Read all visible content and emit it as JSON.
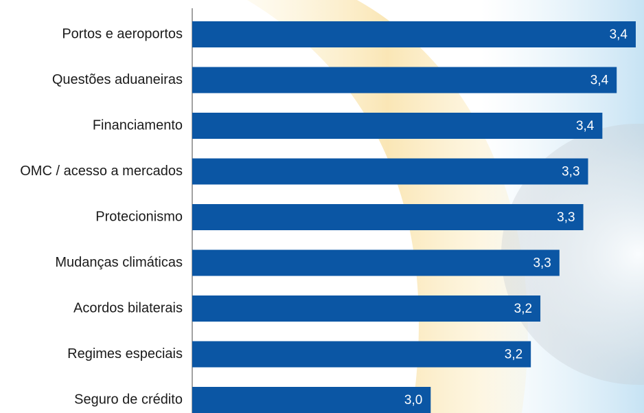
{
  "chart_data": {
    "type": "bar",
    "orientation": "horizontal",
    "categories": [
      "Portos e aeroportos",
      "Questões aduaneiras",
      "Financiamento",
      "OMC / acesso a mercados",
      "Protecionismo",
      "Mudanças climáticas",
      "Acordos bilaterais",
      "Regimes especiais",
      "Seguro de crédito"
    ],
    "values": [
      3.43,
      3.39,
      3.36,
      3.33,
      3.32,
      3.27,
      3.23,
      3.21,
      3.0
    ],
    "value_labels": [
      "3,4",
      "3,4",
      "3,4",
      "3,3",
      "3,3",
      "3,3",
      "3,2",
      "3,2",
      "3,0"
    ],
    "xlim": [
      2.5,
      3.43
    ],
    "bar_color": "#0b56a4",
    "value_label_color": "#ffffff",
    "grid": false,
    "legend": "none",
    "title": "",
    "xlabel": "",
    "ylabel": ""
  }
}
